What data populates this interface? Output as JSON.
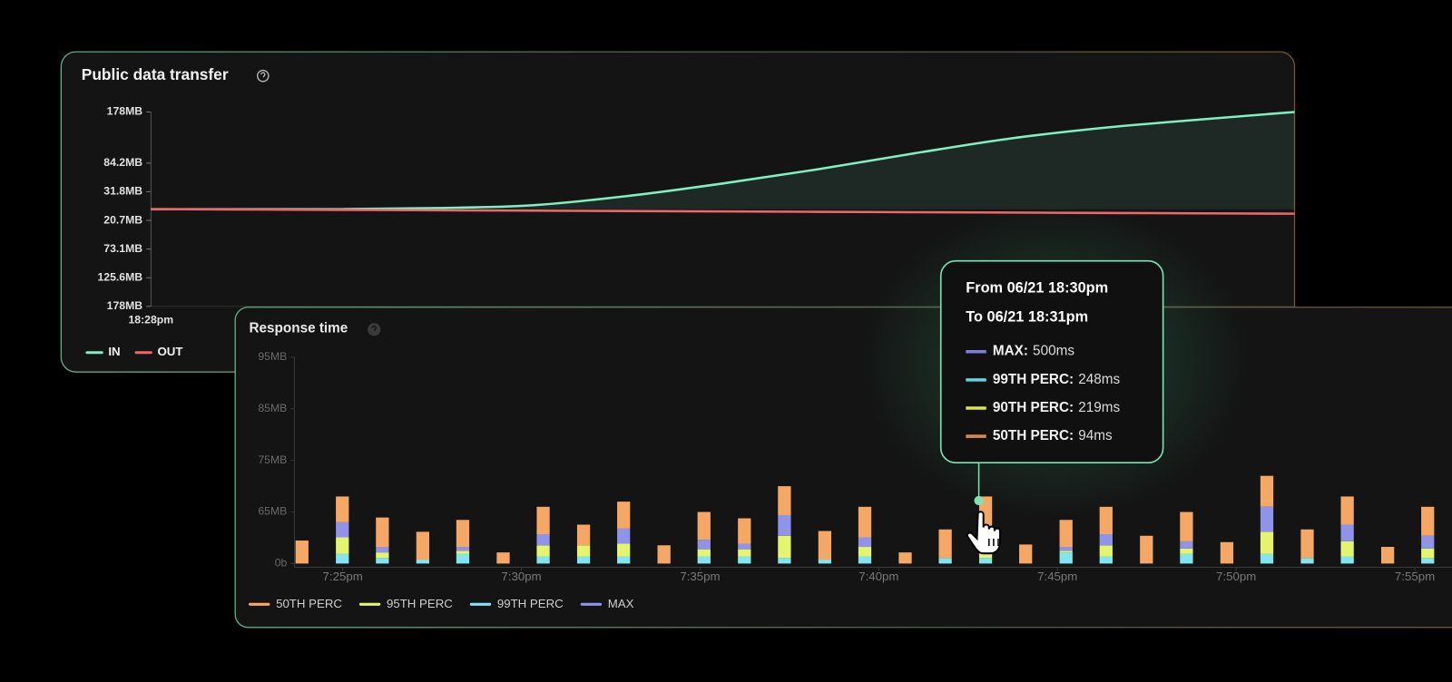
{
  "chart_data": [
    {
      "type": "line",
      "title": "Public data transfer",
      "categories": [
        "18:28pm",
        null,
        null,
        null,
        null,
        null,
        null,
        null,
        null,
        null,
        null,
        null,
        null
      ],
      "series": [
        {
          "name": "IN",
          "color": "#7ff0c0",
          "area": true,
          "values": [
            0,
            0,
            0,
            2,
            7,
            24,
            47,
            73,
            102,
            129,
            149,
            164,
            178
          ]
        },
        {
          "name": "OUT",
          "color": "#f0676a",
          "values": [
            0,
            -0.7,
            -1.4,
            -2.1,
            -2.8,
            -3.5,
            -4.2,
            -4.9,
            -5.6,
            -6.3,
            -7,
            -7.7,
            -8.4
          ]
        }
      ],
      "ylim": [
        -178,
        178
      ],
      "yticks": [
        {
          "value": 178,
          "label": "178MB"
        },
        {
          "value": 84.2,
          "label": "84.2MB"
        },
        {
          "value": 31.8,
          "label": "31.8MB"
        },
        {
          "value": -20.7,
          "label": "20.7MB"
        },
        {
          "value": -73.1,
          "label": "73.1MB"
        },
        {
          "value": -125.6,
          "label": "125.6MB"
        },
        {
          "value": -178,
          "label": "178MB"
        }
      ],
      "legend": "bottom-left"
    },
    {
      "type": "bar",
      "stacked": true,
      "title": "Response time",
      "x": [
        23.86,
        24.99,
        26.11,
        27.24,
        28.36,
        29.49,
        30.61,
        31.74,
        32.86,
        33.99,
        35.11,
        36.24,
        37.36,
        38.49,
        39.61,
        40.74,
        41.86,
        42.99,
        44.11,
        45.24,
        46.36,
        47.49,
        48.61,
        49.74,
        50.86,
        51.99,
        53.11,
        54.24,
        55.36
      ],
      "xlim": [
        23.65,
        56.04
      ],
      "xticks": [
        {
          "value": 25,
          "label": "7:25pm"
        },
        {
          "value": 30,
          "label": "7:30pm"
        },
        {
          "value": 35,
          "label": "7:35pm"
        },
        {
          "value": 40,
          "label": "7:40pm"
        },
        {
          "value": 45,
          "label": "7:45pm"
        },
        {
          "value": 50,
          "label": "7:50pm"
        },
        {
          "value": 55,
          "label": "7:55pm"
        }
      ],
      "series": [
        {
          "name": "50TH PERC",
          "color": "#f5a866",
          "values": [
            29,
            16,
            37,
            35,
            34,
            14,
            29,
            26,
            23,
            23,
            35,
            32,
            9,
            36,
            33,
            14,
            36,
            47,
            24,
            34,
            29,
            35,
            37,
            27,
            6,
            36,
            19,
            21,
            31
          ]
        },
        {
          "name": "95TH PERC",
          "color": "#e4f46c",
          "values": [
            0,
            21,
            7,
            0,
            4,
            0,
            14,
            14,
            16,
            0,
            9,
            9,
            28,
            0,
            12,
            0,
            0,
            14,
            0,
            2,
            14,
            0,
            7,
            0,
            28,
            0,
            19,
            0,
            12
          ]
        },
        {
          "name": "99TH PERC",
          "color": "#82e6f2",
          "values": [
            0,
            12,
            7,
            5,
            12,
            0,
            9,
            9,
            9,
            0,
            9,
            9,
            7,
            5,
            9,
            0,
            7,
            7,
            0,
            14,
            9,
            0,
            12,
            0,
            12,
            7,
            9,
            0,
            7
          ]
        },
        {
          "name": "MAX",
          "color": "#9093ea",
          "values": [
            0,
            19,
            7,
            0,
            5,
            0,
            14,
            0,
            19,
            0,
            12,
            7,
            26,
            0,
            12,
            0,
            0,
            0,
            0,
            5,
            14,
            0,
            9,
            0,
            26,
            0,
            21,
            0,
            16
          ]
        }
      ],
      "ylim": [
        0,
        95
      ],
      "yticks": [
        {
          "value": 0,
          "label": "0b"
        },
        {
          "value": 65,
          "label": "65MB"
        },
        {
          "value": 75,
          "label": "75MB"
        },
        {
          "value": 85,
          "label": "85MB"
        },
        {
          "value": 95,
          "label": "95MB"
        }
      ],
      "legend": "bottom-left"
    }
  ],
  "tooltip": {
    "lines": [
      "From 06/21 18:30pm",
      "To 06/21 18:31pm"
    ],
    "items": [
      {
        "label": "MAX:",
        "value": "500ms",
        "color": "#7b80d4"
      },
      {
        "label": "99TH PERC:",
        "value": "248ms",
        "color": "#5fd5e0"
      },
      {
        "label": "90TH PERC:",
        "value": "219ms",
        "color": "#dbe64d"
      },
      {
        "label": "50TH PERC:",
        "value": "94ms",
        "color": "#d9884a"
      }
    ]
  }
}
